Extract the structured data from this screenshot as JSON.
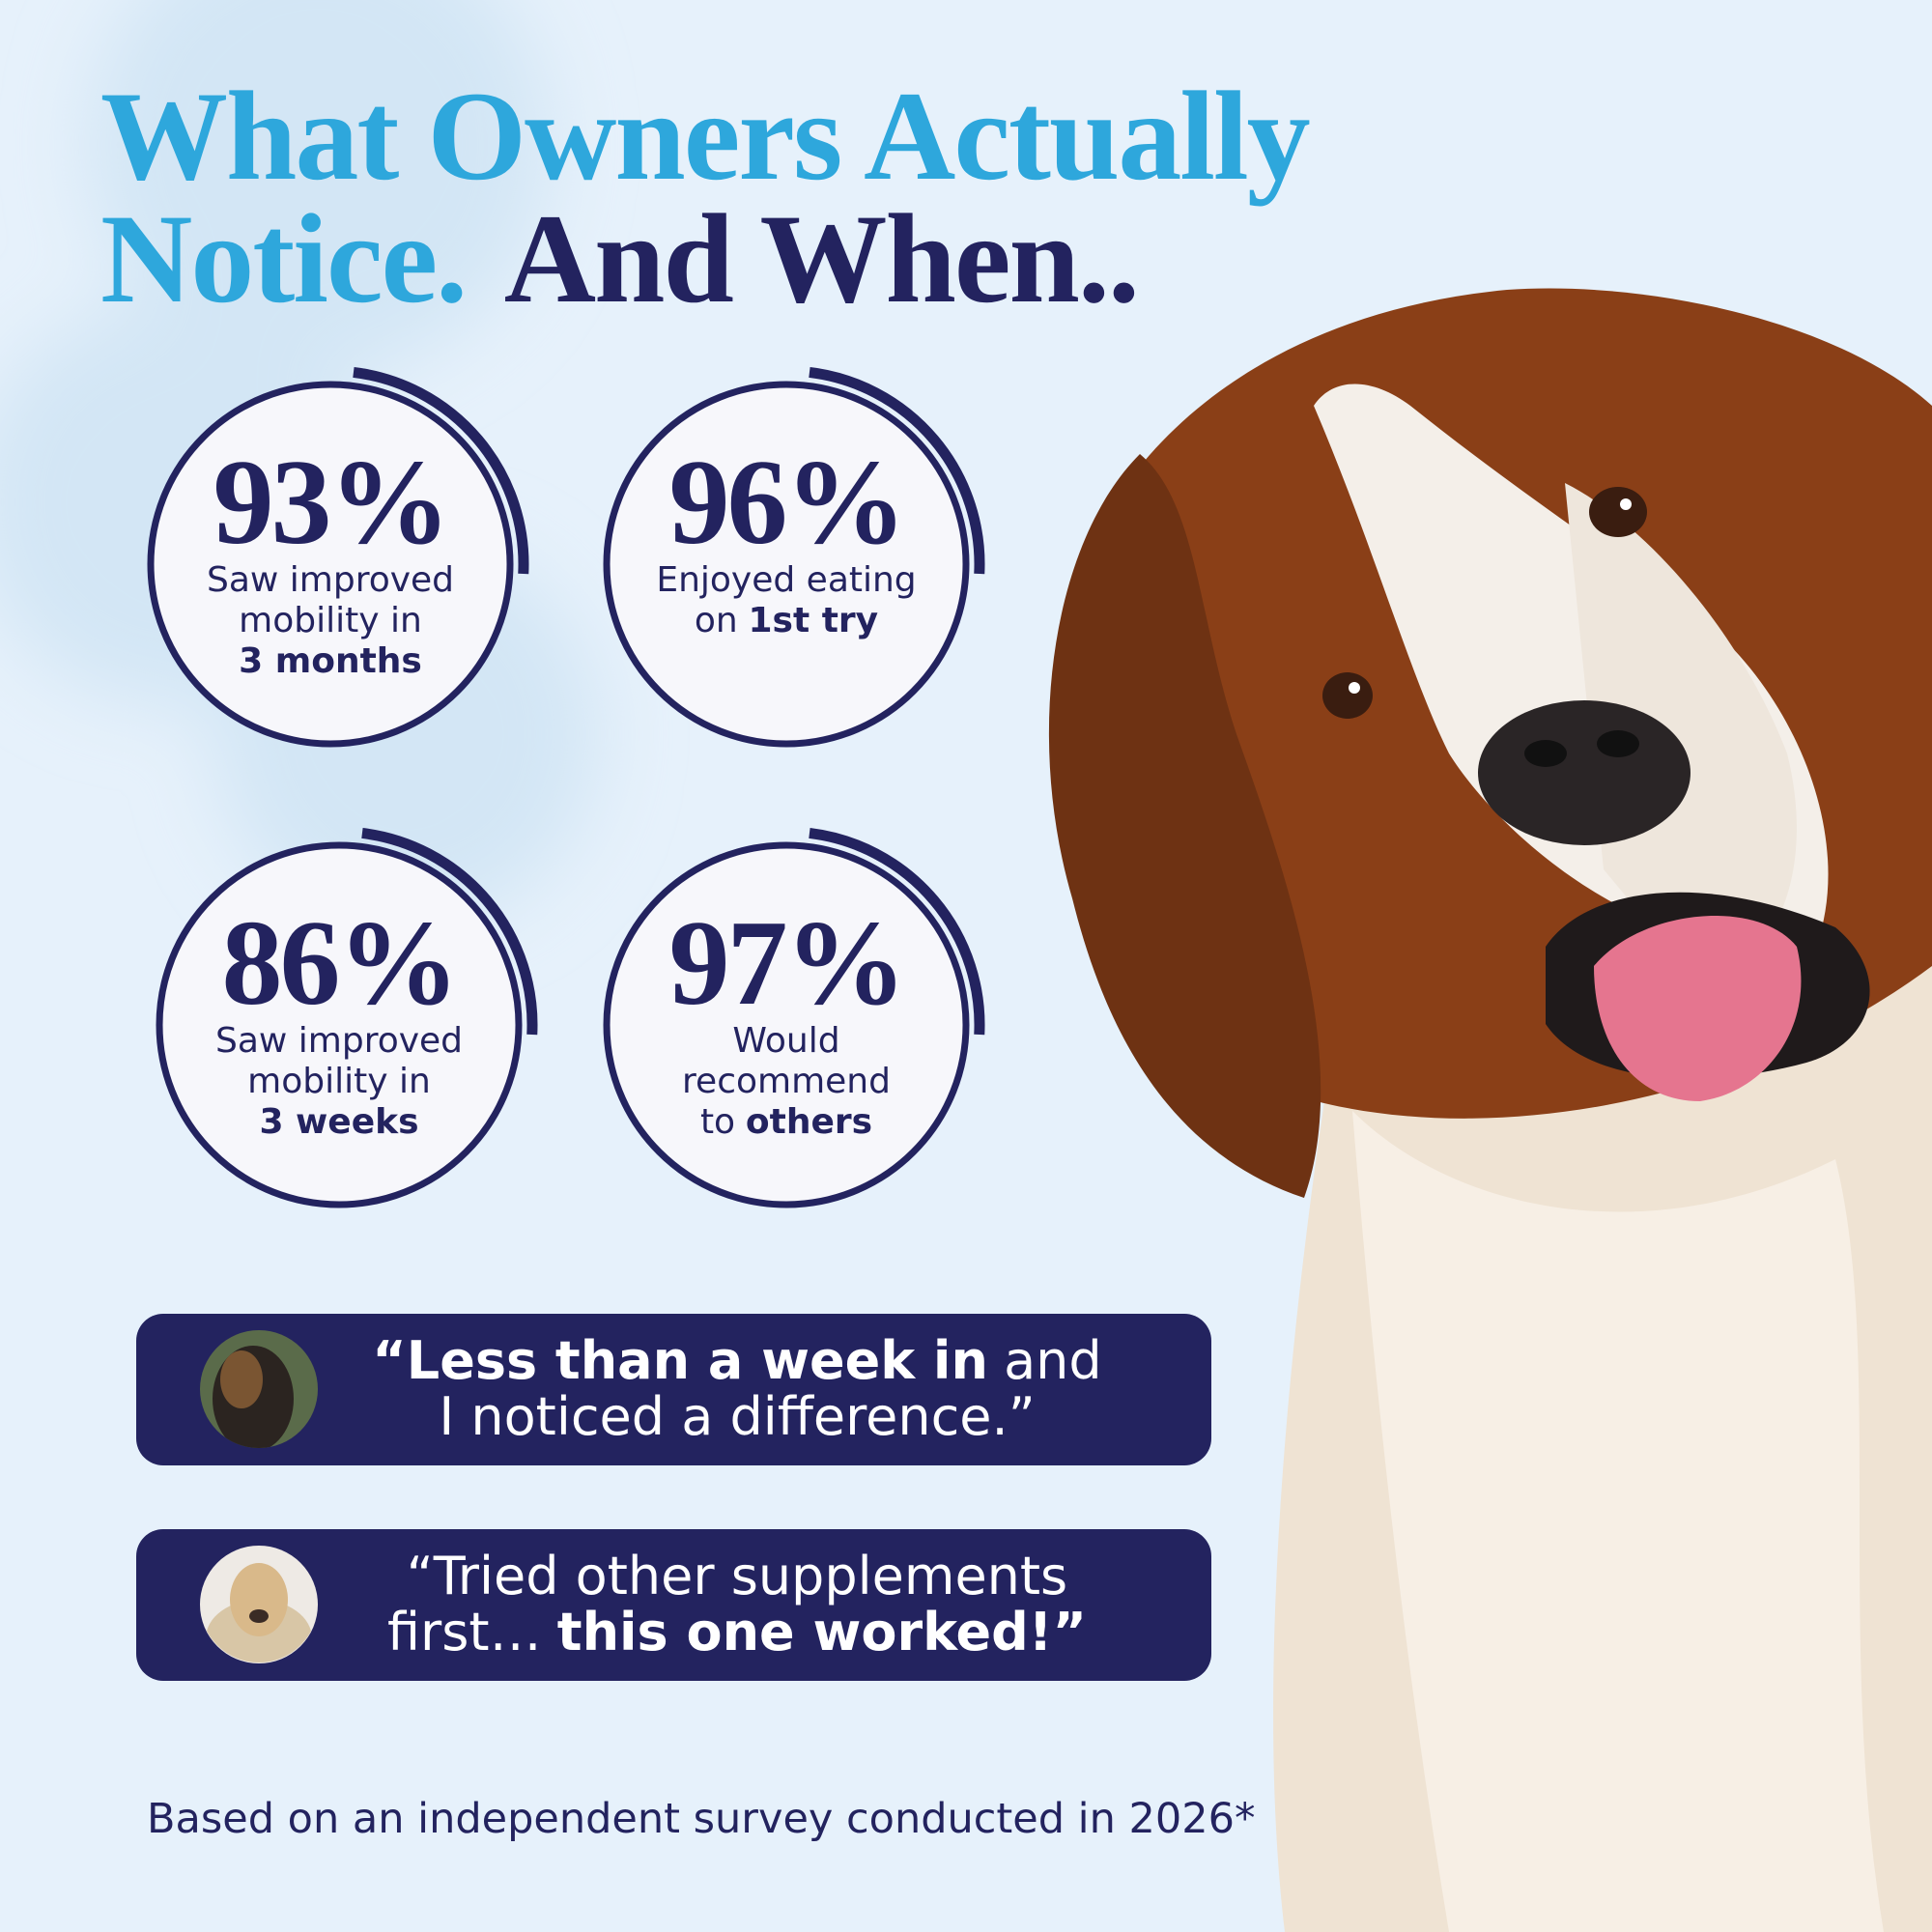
{
  "header": {
    "title_lines": [
      [
        {
          "text": "What Owners Actually",
          "color": "#2ea7dc"
        }
      ],
      [
        {
          "text": "Notice.",
          "color": "#2ea7dc"
        },
        {
          "text": "And When..",
          "color": "#23235f"
        }
      ]
    ]
  },
  "stats": [
    {
      "value": "93%",
      "lines": [
        [
          {
            "text": "Saw improved",
            "bold": false
          }
        ],
        [
          {
            "text": "mobility in",
            "bold": false
          }
        ],
        [
          {
            "text": "3 months",
            "bold": true
          }
        ]
      ]
    },
    {
      "value": "96%",
      "lines": [
        [
          {
            "text": "Enjoyed eating",
            "bold": false
          }
        ],
        [
          {
            "text": "on",
            "bold": false
          },
          {
            "text": "1st try",
            "bold": true
          }
        ]
      ]
    },
    {
      "value": "86%",
      "lines": [
        [
          {
            "text": "Saw improved",
            "bold": false
          }
        ],
        [
          {
            "text": "mobility in",
            "bold": false
          }
        ],
        [
          {
            "text": "3 weeks",
            "bold": true
          }
        ]
      ]
    },
    {
      "value": "97%",
      "lines": [
        [
          {
            "text": "Would",
            "bold": false
          }
        ],
        [
          {
            "text": "recommend",
            "bold": false
          }
        ],
        [
          {
            "text": "to",
            "bold": false
          },
          {
            "text": "others",
            "bold": true
          }
        ]
      ]
    }
  ],
  "testimonials": [
    {
      "lines": [
        [
          {
            "text": "“Less than a week in",
            "bold": true
          },
          {
            "text": "and",
            "bold": false
          }
        ],
        [
          {
            "text": "I noticed a difference.”",
            "bold": false
          }
        ]
      ]
    },
    {
      "lines": [
        [
          {
            "text": "“Tried other supplements",
            "bold": false
          }
        ],
        [
          {
            "text": "first…",
            "bold": false
          },
          {
            "text": "this one worked!”",
            "bold": true
          }
        ]
      ]
    }
  ],
  "footer": {
    "note": "Based on an independent survey conducted in 2026*"
  }
}
